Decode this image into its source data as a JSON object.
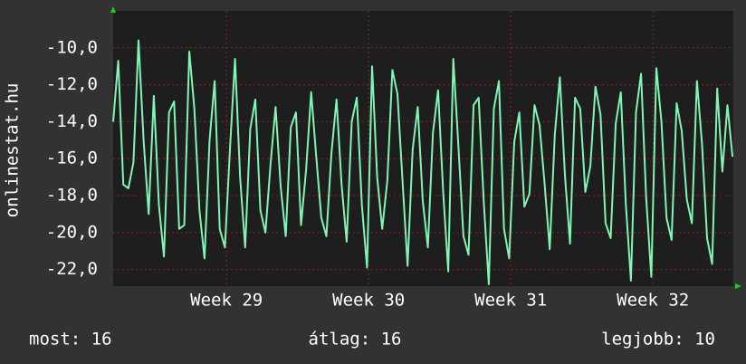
{
  "chart_data": {
    "type": "line",
    "y_label": "onlinestat.hu",
    "x": [
      0,
      6,
      12,
      18,
      24,
      30,
      36,
      42,
      48,
      54,
      60,
      66,
      72,
      78,
      84,
      90,
      96,
      102,
      108,
      114,
      120,
      126,
      132,
      138,
      144,
      150,
      156,
      162,
      168,
      174,
      180,
      186,
      192,
      198,
      204,
      210,
      216,
      222,
      228,
      234,
      240,
      246,
      252,
      258,
      264,
      270,
      276,
      282,
      288,
      294,
      300,
      306,
      312,
      318,
      324,
      330,
      336,
      342,
      348,
      354,
      360,
      366,
      372,
      378,
      384,
      390,
      396,
      402,
      408,
      414,
      420,
      426,
      432,
      438,
      444,
      450,
      456,
      462,
      468,
      474,
      480,
      486,
      492,
      498,
      504,
      510,
      516,
      522,
      528,
      534,
      540,
      546,
      552,
      558,
      564,
      570,
      576,
      582,
      588,
      594,
      600,
      606,
      612,
      618,
      624,
      630,
      636,
      642,
      648,
      654,
      660,
      666,
      672,
      678,
      684,
      690,
      696,
      702,
      708,
      714,
      720,
      726,
      732
    ],
    "series": [
      {
        "color": "#80f5b4",
        "values": [
          -14,
          -10.7,
          -17.4,
          -17.6,
          -16.2,
          -9.6,
          -15,
          -19,
          -12.6,
          -18.5,
          -21.3,
          -13.5,
          -12.9,
          -19.8,
          -19.6,
          -10.2,
          -13.3,
          -18.8,
          -21.4,
          -15,
          -11.8,
          -19.8,
          -20.8,
          -15.5,
          -10.6,
          -17,
          -20.8,
          -14.4,
          -12.8,
          -18.8,
          -20,
          -16.3,
          -13.2,
          -17.5,
          -20.2,
          -14.3,
          -13.5,
          -19.6,
          -16.6,
          -12.4,
          -15.9,
          -19.2,
          -20.2,
          -15.7,
          -12.8,
          -17.4,
          -20.5,
          -14,
          -12.7,
          -18.5,
          -21.9,
          -11,
          -17,
          -19.8,
          -17.2,
          -11.2,
          -12.5,
          -17.2,
          -21.8,
          -15.5,
          -13.2,
          -18.3,
          -20.8,
          -14.6,
          -12.3,
          -17.8,
          -22.1,
          -10.6,
          -15.3,
          -20.2,
          -21.2,
          -13.1,
          -12.7,
          -18.3,
          -22.8,
          -13.3,
          -11.8,
          -19.8,
          -21.4,
          -15.1,
          -13.5,
          -18.6,
          -17.9,
          -13.1,
          -14.2,
          -17.4,
          -20.9,
          -14.7,
          -11.6,
          -16.9,
          -20.6,
          -12.7,
          -13.3,
          -17.8,
          -16.4,
          -12.1,
          -13.6,
          -19.5,
          -20.3,
          -14.1,
          -12.4,
          -18.5,
          -22.6,
          -13.5,
          -11.4,
          -18.1,
          -22.4,
          -11.1,
          -14,
          -19.2,
          -20.4,
          -13,
          -14.5,
          -18.2,
          -19.5,
          -11.8,
          -15.2,
          -20.3,
          -21.7,
          -12.2,
          -16.7,
          -13.1,
          -15.9
        ]
      }
    ],
    "xlim": [
      0,
      733
    ],
    "xticks": [
      {
        "value": 134,
        "label": "Week 29"
      },
      {
        "value": 302,
        "label": "Week 30"
      },
      {
        "value": 470,
        "label": "Week 31"
      },
      {
        "value": 638,
        "label": "Week 32"
      }
    ],
    "ylim": [
      -22.9,
      -8
    ],
    "yticks": [
      {
        "value": -22,
        "label": "-22,0"
      },
      {
        "value": -20,
        "label": "-20,0"
      },
      {
        "value": -18,
        "label": "-18,0"
      },
      {
        "value": -16,
        "label": "-16,0"
      },
      {
        "value": -14,
        "label": "-14,0"
      },
      {
        "value": -12,
        "label": "-12,0"
      },
      {
        "value": -10,
        "label": "-10,0"
      }
    ],
    "grid": true,
    "footer": [
      "most: 16",
      "átlag: 16",
      "legjobb: 10"
    ]
  }
}
